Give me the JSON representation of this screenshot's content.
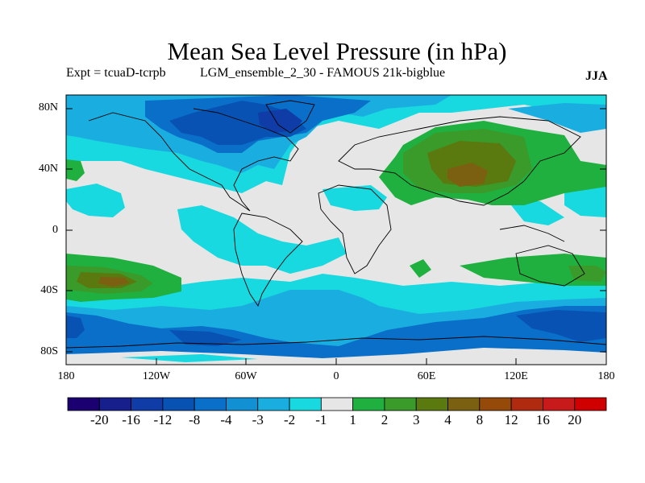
{
  "header": {
    "title": "Mean Sea Level Pressure (in hPa)",
    "experiment": "Expt = tcuaD-tcrpb",
    "run": "LGM_ensemble_2_30 - FAMOUS 21k-bigblue",
    "season": "JJA"
  },
  "map": {
    "background_color": "#e6e6e6",
    "lat_labels": [
      "80N",
      "40N",
      "0",
      "40S",
      "80S"
    ],
    "lon_labels": [
      "180",
      "120W",
      "60W",
      "0",
      "60E",
      "120E",
      "180"
    ]
  },
  "colorbar": {
    "labels": [
      "-20",
      "-16",
      "-12",
      "-8",
      "-4",
      "-3",
      "-2",
      "-1",
      "1",
      "2",
      "3",
      "4",
      "8",
      "12",
      "16",
      "20"
    ],
    "colors": [
      "#1a0070",
      "#161f8c",
      "#0f3ca6",
      "#0852b4",
      "#0a6fc8",
      "#1290d4",
      "#1aaee0",
      "#18d8e0",
      "#e6e6e6",
      "#20b040",
      "#3a9a2a",
      "#5a7a10",
      "#7a6010",
      "#964a0a",
      "#b02a10",
      "#c81a1a",
      "#d00000"
    ]
  }
}
